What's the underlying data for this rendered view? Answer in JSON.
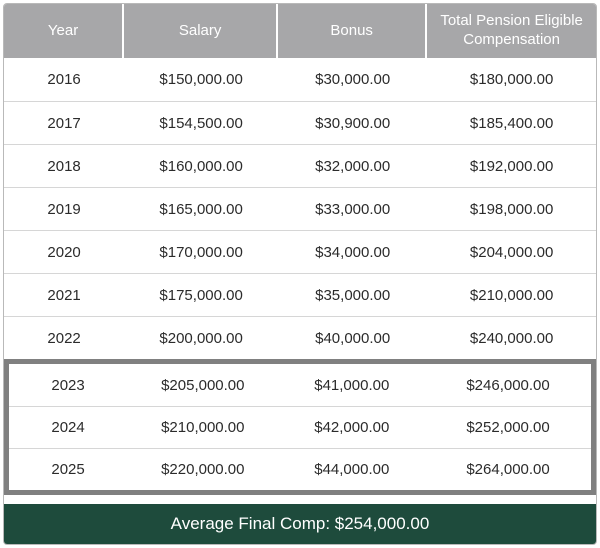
{
  "chart_data": {
    "type": "table",
    "columns": [
      "Year",
      "Salary",
      "Bonus",
      "Total Pension Eligible Compensation"
    ],
    "rows": [
      {
        "year": "2016",
        "salary": "$150,000.00",
        "bonus": "$30,000.00",
        "total": "$180,000.00",
        "highlighted": false
      },
      {
        "year": "2017",
        "salary": "$154,500.00",
        "bonus": "$30,900.00",
        "total": "$185,400.00",
        "highlighted": false
      },
      {
        "year": "2018",
        "salary": "$160,000.00",
        "bonus": "$32,000.00",
        "total": "$192,000.00",
        "highlighted": false
      },
      {
        "year": "2019",
        "salary": "$165,000.00",
        "bonus": "$33,000.00",
        "total": "$198,000.00",
        "highlighted": false
      },
      {
        "year": "2020",
        "salary": "$170,000.00",
        "bonus": "$34,000.00",
        "total": "$204,000.00",
        "highlighted": false
      },
      {
        "year": "2021",
        "salary": "$175,000.00",
        "bonus": "$35,000.00",
        "total": "$210,000.00",
        "highlighted": false
      },
      {
        "year": "2022",
        "salary": "$200,000.00",
        "bonus": "$40,000.00",
        "total": "$240,000.00",
        "highlighted": false
      },
      {
        "year": "2023",
        "salary": "$205,000.00",
        "bonus": "$41,000.00",
        "total": "$246,000.00",
        "highlighted": true
      },
      {
        "year": "2024",
        "salary": "$210,000.00",
        "bonus": "$42,000.00",
        "total": "$252,000.00",
        "highlighted": true
      },
      {
        "year": "2025",
        "salary": "$220,000.00",
        "bonus": "$44,000.00",
        "total": "$264,000.00",
        "highlighted": true
      }
    ],
    "footer": "Average Final Comp: $254,000.00",
    "title": "",
    "layout_hints": {
      "highlighted_year_range": "2023-2025",
      "grid": "horizontal-separators-only",
      "alignment": "center"
    }
  },
  "colors": {
    "header_bg": "#a7a7a9",
    "header_text": "#ffffff",
    "body_text": "#2b2b2b",
    "row_separator": "#d6d6d6",
    "highlight_border": "#808080",
    "footer_bg": "#1e4b3c",
    "footer_text": "#ffffff",
    "outer_border": "#b9b9b9"
  }
}
